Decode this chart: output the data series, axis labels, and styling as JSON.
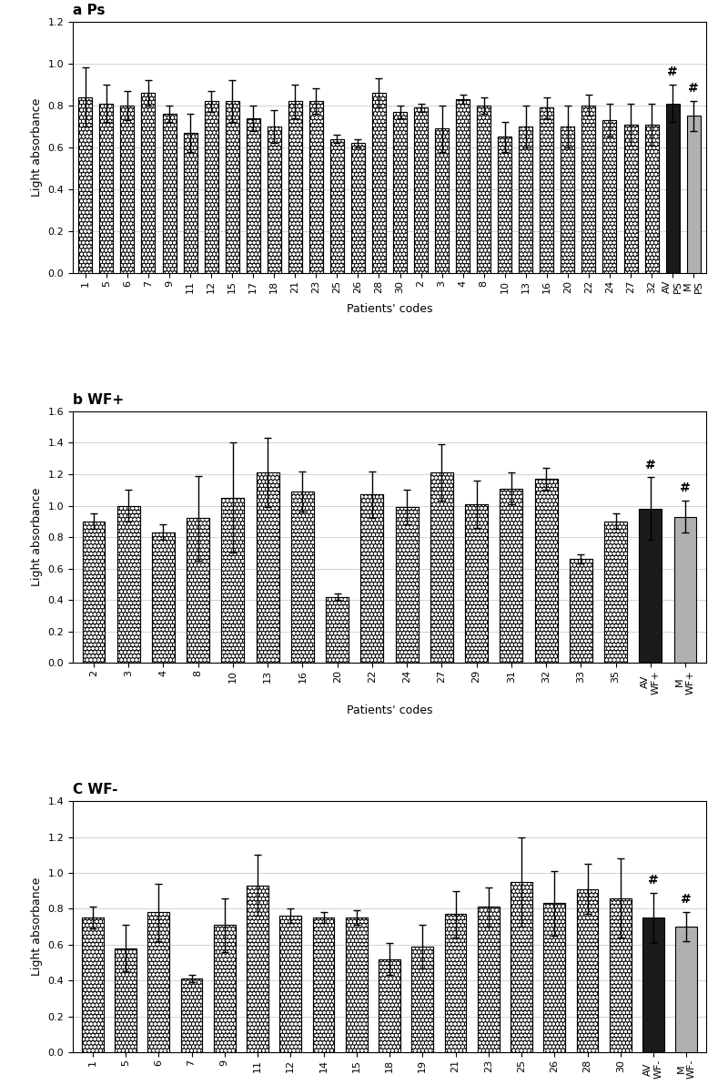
{
  "panel_a": {
    "title": "a Ps",
    "categories": [
      "1",
      "5",
      "6",
      "7",
      "9",
      "11",
      "12",
      "15",
      "17",
      "18",
      "21",
      "23",
      "25",
      "26",
      "28",
      "30",
      "2",
      "3",
      "4",
      "8",
      "10",
      "13",
      "16",
      "20",
      "22",
      "24",
      "27",
      "32",
      "AV\nPS",
      "M\nPS"
    ],
    "values": [
      0.84,
      0.81,
      0.8,
      0.86,
      0.76,
      0.67,
      0.82,
      0.82,
      0.74,
      0.7,
      0.82,
      0.82,
      0.64,
      0.62,
      0.86,
      0.77,
      0.79,
      0.69,
      0.83,
      0.8,
      0.65,
      0.7,
      0.79,
      0.7,
      0.8,
      0.73,
      0.71,
      0.71,
      0.81,
      0.75
    ],
    "errors": [
      0.14,
      0.09,
      0.07,
      0.06,
      0.04,
      0.09,
      0.05,
      0.1,
      0.06,
      0.08,
      0.08,
      0.06,
      0.02,
      0.02,
      0.07,
      0.03,
      0.02,
      0.11,
      0.02,
      0.04,
      0.07,
      0.1,
      0.05,
      0.1,
      0.05,
      0.08,
      0.1,
      0.1,
      0.09,
      0.07
    ],
    "bar_colors_type": [
      "dotted",
      "dotted",
      "dotted",
      "dotted",
      "dotted",
      "dotted",
      "dotted",
      "dotted",
      "dotted",
      "dotted",
      "dotted",
      "dotted",
      "dotted",
      "dotted",
      "dotted",
      "dotted",
      "dotted",
      "dotted",
      "dotted",
      "dotted",
      "dotted",
      "dotted",
      "dotted",
      "dotted",
      "dotted",
      "dotted",
      "dotted",
      "dotted",
      "black",
      "gray"
    ],
    "ylim": [
      0,
      1.2
    ],
    "yticks": [
      0,
      0.2,
      0.4,
      0.6,
      0.8,
      1.0,
      1.2
    ],
    "hash_indices": [
      28,
      29
    ],
    "ylabel": "Light absorbance",
    "xlabel": "Patients' codes"
  },
  "panel_b": {
    "title": "b WF+",
    "categories": [
      "2",
      "3",
      "4",
      "8",
      "10",
      "13",
      "16",
      "20",
      "22",
      "24",
      "27",
      "29",
      "31",
      "32",
      "33",
      "35",
      "AV\nWF+",
      "M\nWF+"
    ],
    "values": [
      0.9,
      1.0,
      0.83,
      0.92,
      1.05,
      1.21,
      1.09,
      0.42,
      1.07,
      0.99,
      1.21,
      1.01,
      1.11,
      1.17,
      0.66,
      0.9,
      0.98,
      0.93
    ],
    "errors": [
      0.05,
      0.1,
      0.05,
      0.27,
      0.35,
      0.22,
      0.13,
      0.02,
      0.15,
      0.11,
      0.18,
      0.15,
      0.1,
      0.07,
      0.03,
      0.05,
      0.2,
      0.1
    ],
    "bar_colors_type": [
      "dotted",
      "dotted",
      "dotted",
      "dotted",
      "dotted",
      "dotted",
      "dotted",
      "dotted",
      "dotted",
      "dotted",
      "dotted",
      "dotted",
      "dotted",
      "dotted",
      "dotted",
      "dotted",
      "black",
      "gray"
    ],
    "ylim": [
      0,
      1.6
    ],
    "yticks": [
      0,
      0.2,
      0.4,
      0.6,
      0.8,
      1.0,
      1.2,
      1.4,
      1.6
    ],
    "hash_indices": [
      16,
      17
    ],
    "ylabel": "Light absorbance",
    "xlabel": "Patients' codes"
  },
  "panel_c": {
    "title": "C WF-",
    "categories": [
      "1",
      "5",
      "6",
      "7",
      "9",
      "11",
      "12",
      "14",
      "15",
      "18",
      "19",
      "21",
      "23",
      "25",
      "26",
      "28",
      "30",
      "AV\nWF-",
      "M\nWF-"
    ],
    "values": [
      0.75,
      0.58,
      0.78,
      0.41,
      0.71,
      0.93,
      0.76,
      0.75,
      0.75,
      0.52,
      0.59,
      0.77,
      0.81,
      0.95,
      0.83,
      0.91,
      0.86,
      0.75,
      0.7
    ],
    "errors": [
      0.06,
      0.13,
      0.16,
      0.02,
      0.15,
      0.17,
      0.04,
      0.03,
      0.04,
      0.09,
      0.12,
      0.13,
      0.11,
      0.25,
      0.18,
      0.14,
      0.22,
      0.14,
      0.08
    ],
    "bar_colors_type": [
      "dotted",
      "dotted",
      "dotted",
      "dotted",
      "dotted",
      "dotted",
      "dotted",
      "dotted",
      "dotted",
      "dotted",
      "dotted",
      "dotted",
      "dotted",
      "dotted",
      "dotted",
      "dotted",
      "dotted",
      "black",
      "gray"
    ],
    "ylim": [
      0,
      1.4
    ],
    "yticks": [
      0,
      0.2,
      0.4,
      0.6,
      0.8,
      1.0,
      1.2,
      1.4
    ],
    "hash_indices": [
      17,
      18
    ],
    "ylabel": "Light absorbance",
    "xlabel": "Patients' codes"
  },
  "dotted_facecolor": "#1a1a1a",
  "black_color": "#1a1a1a",
  "gray_color": "#b0b0b0",
  "figure_bg": "#ffffff",
  "panel_bg": "#ffffff",
  "grid_color": "#cccccc",
  "hatch_pattern": "oooo",
  "bar_width": 0.65,
  "title_fontsize": 11,
  "axis_label_fontsize": 9,
  "tick_fontsize": 8,
  "xtick_fontsize": 8
}
